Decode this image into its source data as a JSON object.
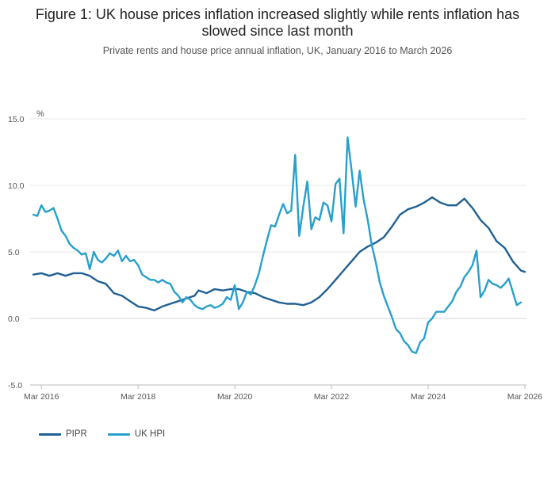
{
  "title": "Figure 1: UK house prices inflation increased slightly while rents inflation has slowed since last month",
  "subtitle": "Private rents and house price annual inflation, UK, January 2016 to March 2026",
  "chart_data": {
    "type": "line",
    "ylabel": "%",
    "ylim": [
      -5,
      15
    ],
    "yticks": [
      -5,
      0,
      5,
      10,
      15
    ],
    "ytick_labels": [
      "-5.0",
      "0.0",
      "5.0",
      "10.0",
      "15.0"
    ],
    "xlim": [
      "2016-01",
      "2026-03"
    ],
    "xticks": [
      {
        "date": "2016-03",
        "label": "Mar 2016"
      },
      {
        "date": "2018-03",
        "label": "Mar 2018"
      },
      {
        "date": "2020-03",
        "label": "Mar 2020"
      },
      {
        "date": "2022-03",
        "label": "Mar 2022"
      },
      {
        "date": "2024-03",
        "label": "Mar 2024"
      },
      {
        "date": "2026-03",
        "label": "Mar 2026"
      }
    ],
    "grid": true,
    "legend_position": "bottom-left",
    "series": [
      {
        "name": "PIPR",
        "color": "#206095",
        "points": [
          [
            "2016-01",
            3.3
          ],
          [
            "2016-03",
            3.4
          ],
          [
            "2016-05",
            3.2
          ],
          [
            "2016-07",
            3.4
          ],
          [
            "2016-09",
            3.2
          ],
          [
            "2016-11",
            3.4
          ],
          [
            "2017-01",
            3.4
          ],
          [
            "2017-03",
            3.2
          ],
          [
            "2017-05",
            2.8
          ],
          [
            "2017-07",
            2.6
          ],
          [
            "2017-09",
            1.9
          ],
          [
            "2017-11",
            1.7
          ],
          [
            "2018-01",
            1.3
          ],
          [
            "2018-03",
            0.9
          ],
          [
            "2018-05",
            0.8
          ],
          [
            "2018-07",
            0.6
          ],
          [
            "2018-09",
            0.9
          ],
          [
            "2018-11",
            1.1
          ],
          [
            "2019-01",
            1.3
          ],
          [
            "2019-03",
            1.5
          ],
          [
            "2019-05",
            1.7
          ],
          [
            "2019-06",
            2.1
          ],
          [
            "2019-08",
            1.9
          ],
          [
            "2019-10",
            2.2
          ],
          [
            "2019-12",
            2.1
          ],
          [
            "2020-02",
            2.2
          ],
          [
            "2020-04",
            2.2
          ],
          [
            "2020-06",
            2.0
          ],
          [
            "2020-08",
            1.9
          ],
          [
            "2020-10",
            1.6
          ],
          [
            "2020-12",
            1.4
          ],
          [
            "2021-02",
            1.2
          ],
          [
            "2021-04",
            1.1
          ],
          [
            "2021-06",
            1.1
          ],
          [
            "2021-08",
            1.0
          ],
          [
            "2021-10",
            1.2
          ],
          [
            "2021-12",
            1.6
          ],
          [
            "2022-02",
            2.2
          ],
          [
            "2022-04",
            2.9
          ],
          [
            "2022-06",
            3.6
          ],
          [
            "2022-08",
            4.3
          ],
          [
            "2022-10",
            5.0
          ],
          [
            "2022-12",
            5.4
          ],
          [
            "2023-02",
            5.7
          ],
          [
            "2023-04",
            6.1
          ],
          [
            "2023-06",
            6.9
          ],
          [
            "2023-08",
            7.8
          ],
          [
            "2023-10",
            8.2
          ],
          [
            "2023-12",
            8.4
          ],
          [
            "2024-02",
            8.7
          ],
          [
            "2024-04",
            9.1
          ],
          [
            "2024-06",
            8.7
          ],
          [
            "2024-08",
            8.5
          ],
          [
            "2024-10",
            8.5
          ],
          [
            "2024-12",
            9.0
          ],
          [
            "2025-02",
            8.3
          ],
          [
            "2025-04",
            7.4
          ],
          [
            "2025-06",
            6.8
          ],
          [
            "2025-08",
            5.8
          ],
          [
            "2025-10",
            5.3
          ],
          [
            "2025-12",
            4.3
          ],
          [
            "2026-02",
            3.6
          ],
          [
            "2026-03",
            3.5
          ]
        ]
      },
      {
        "name": "UK HPI",
        "color": "#27a0cc",
        "points": [
          [
            "2016-01",
            7.8
          ],
          [
            "2016-02",
            7.7
          ],
          [
            "2016-03",
            8.5
          ],
          [
            "2016-04",
            8.0
          ],
          [
            "2016-05",
            8.1
          ],
          [
            "2016-06",
            8.3
          ],
          [
            "2016-07",
            7.5
          ],
          [
            "2016-08",
            6.6
          ],
          [
            "2016-09",
            6.2
          ],
          [
            "2016-10",
            5.6
          ],
          [
            "2016-11",
            5.3
          ],
          [
            "2016-12",
            5.1
          ],
          [
            "2017-01",
            4.8
          ],
          [
            "2017-02",
            4.9
          ],
          [
            "2017-03",
            3.7
          ],
          [
            "2017-04",
            5.0
          ],
          [
            "2017-05",
            4.4
          ],
          [
            "2017-06",
            4.2
          ],
          [
            "2017-07",
            4.5
          ],
          [
            "2017-08",
            4.9
          ],
          [
            "2017-09",
            4.7
          ],
          [
            "2017-10",
            5.1
          ],
          [
            "2017-11",
            4.3
          ],
          [
            "2017-12",
            4.7
          ],
          [
            "2018-01",
            4.3
          ],
          [
            "2018-02",
            4.4
          ],
          [
            "2018-03",
            4.0
          ],
          [
            "2018-04",
            3.3
          ],
          [
            "2018-05",
            3.1
          ],
          [
            "2018-06",
            2.9
          ],
          [
            "2018-07",
            2.9
          ],
          [
            "2018-08",
            2.7
          ],
          [
            "2018-09",
            2.9
          ],
          [
            "2018-10",
            2.7
          ],
          [
            "2018-11",
            2.6
          ],
          [
            "2018-12",
            2.0
          ],
          [
            "2019-01",
            1.7
          ],
          [
            "2019-02",
            1.2
          ],
          [
            "2019-03",
            1.6
          ],
          [
            "2019-04",
            1.4
          ],
          [
            "2019-05",
            1.0
          ],
          [
            "2019-06",
            0.8
          ],
          [
            "2019-07",
            0.7
          ],
          [
            "2019-08",
            0.9
          ],
          [
            "2019-09",
            1.0
          ],
          [
            "2019-10",
            0.8
          ],
          [
            "2019-11",
            0.9
          ],
          [
            "2019-12",
            1.1
          ],
          [
            "2020-01",
            1.6
          ],
          [
            "2020-02",
            1.4
          ],
          [
            "2020-03",
            2.5
          ],
          [
            "2020-04",
            0.7
          ],
          [
            "2020-05",
            1.2
          ],
          [
            "2020-06",
            2.0
          ],
          [
            "2020-07",
            1.8
          ],
          [
            "2020-08",
            2.5
          ],
          [
            "2020-09",
            3.4
          ],
          [
            "2020-10",
            4.7
          ],
          [
            "2020-11",
            5.9
          ],
          [
            "2020-12",
            7.0
          ],
          [
            "2021-01",
            6.9
          ],
          [
            "2021-02",
            7.8
          ],
          [
            "2021-03",
            8.6
          ],
          [
            "2021-04",
            7.9
          ],
          [
            "2021-05",
            8.1
          ],
          [
            "2021-06",
            12.3
          ],
          [
            "2021-07",
            6.2
          ],
          [
            "2021-08",
            8.4
          ],
          [
            "2021-09",
            10.3
          ],
          [
            "2021-10",
            6.7
          ],
          [
            "2021-11",
            7.6
          ],
          [
            "2021-12",
            7.4
          ],
          [
            "2022-01",
            8.7
          ],
          [
            "2022-02",
            8.5
          ],
          [
            "2022-03",
            7.3
          ],
          [
            "2022-04",
            10.1
          ],
          [
            "2022-05",
            10.5
          ],
          [
            "2022-06",
            6.4
          ],
          [
            "2022-07",
            13.6
          ],
          [
            "2022-08",
            11.1
          ],
          [
            "2022-09",
            8.4
          ],
          [
            "2022-10",
            11.1
          ],
          [
            "2022-11",
            8.9
          ],
          [
            "2022-12",
            7.4
          ],
          [
            "2023-01",
            5.5
          ],
          [
            "2023-02",
            4.2
          ],
          [
            "2023-03",
            2.7
          ],
          [
            "2023-04",
            1.7
          ],
          [
            "2023-05",
            0.9
          ],
          [
            "2023-06",
            0.1
          ],
          [
            "2023-07",
            -0.8
          ],
          [
            "2023-08",
            -1.1
          ],
          [
            "2023-09",
            -1.7
          ],
          [
            "2023-10",
            -2.0
          ],
          [
            "2023-11",
            -2.5
          ],
          [
            "2023-12",
            -2.6
          ],
          [
            "2024-01",
            -1.8
          ],
          [
            "2024-02",
            -1.5
          ],
          [
            "2024-03",
            -0.3
          ],
          [
            "2024-04",
            0.0
          ],
          [
            "2024-05",
            0.5
          ],
          [
            "2024-06",
            0.5
          ],
          [
            "2024-07",
            0.5
          ],
          [
            "2024-08",
            0.9
          ],
          [
            "2024-09",
            1.3
          ],
          [
            "2024-10",
            2.0
          ],
          [
            "2024-11",
            2.4
          ],
          [
            "2024-12",
            3.1
          ],
          [
            "2025-01",
            3.5
          ],
          [
            "2025-02",
            4.0
          ],
          [
            "2025-03",
            5.1
          ],
          [
            "2025-04",
            1.6
          ],
          [
            "2025-05",
            2.1
          ],
          [
            "2025-06",
            2.9
          ],
          [
            "2025-07",
            2.6
          ],
          [
            "2025-08",
            2.5
          ],
          [
            "2025-09",
            2.3
          ],
          [
            "2025-10",
            2.6
          ],
          [
            "2025-11",
            3.0
          ],
          [
            "2025-12",
            2.0
          ],
          [
            "2026-01",
            1.0
          ],
          [
            "2026-02",
            1.2
          ]
        ]
      }
    ]
  }
}
